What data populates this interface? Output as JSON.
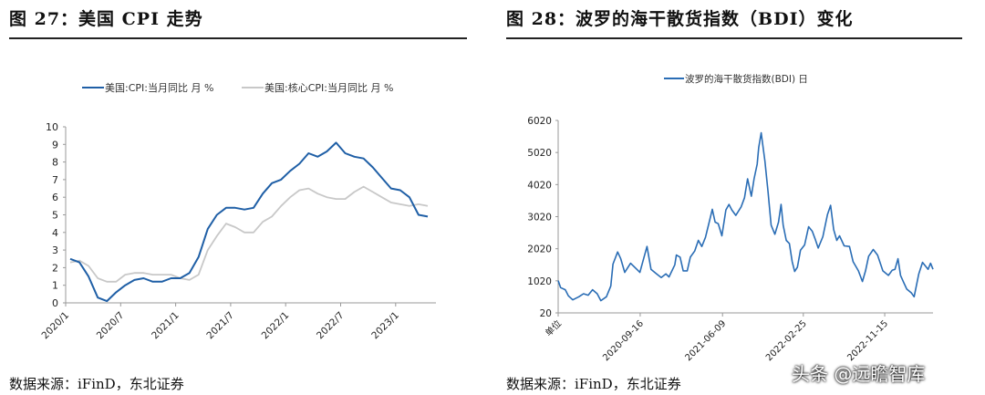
{
  "left": {
    "title": "图 27：美国 CPI 走势",
    "source": "数据来源：iFinD，东北证券"
  },
  "right": {
    "title": "图 28：波罗的海干散货指数（BDI）变化",
    "source": "数据来源：iFinD，东北证券"
  },
  "watermark": "头条 @远瞻智库",
  "chart_data": [
    {
      "type": "line",
      "title": "",
      "legend_position": "top",
      "grid": false,
      "ylim": [
        0,
        10
      ],
      "yticks": [
        0,
        1,
        2,
        3,
        4,
        5,
        6,
        7,
        8,
        9,
        10
      ],
      "xtick_labels": [
        "2020/1",
        "2020/7",
        "2021/1",
        "2021/7",
        "2022/1",
        "2022/7",
        "2023/1"
      ],
      "x": [
        "2020/1",
        "2020/2",
        "2020/3",
        "2020/4",
        "2020/5",
        "2020/6",
        "2020/7",
        "2020/8",
        "2020/9",
        "2020/10",
        "2020/11",
        "2020/12",
        "2021/1",
        "2021/2",
        "2021/3",
        "2021/4",
        "2021/5",
        "2021/6",
        "2021/7",
        "2021/8",
        "2021/9",
        "2021/10",
        "2021/11",
        "2021/12",
        "2022/1",
        "2022/2",
        "2022/3",
        "2022/4",
        "2022/5",
        "2022/6",
        "2022/7",
        "2022/8",
        "2022/9",
        "2022/10",
        "2022/11",
        "2022/12",
        "2023/1",
        "2023/2",
        "2023/3",
        "2023/4"
      ],
      "series": [
        {
          "name": "美国:CPI:当月同比 月 %",
          "color": "#1f5fa6",
          "values": [
            2.5,
            2.3,
            1.5,
            0.3,
            0.1,
            0.6,
            1.0,
            1.3,
            1.4,
            1.2,
            1.2,
            1.4,
            1.4,
            1.7,
            2.6,
            4.2,
            5.0,
            5.4,
            5.4,
            5.3,
            5.4,
            6.2,
            6.8,
            7.0,
            7.5,
            7.9,
            8.5,
            8.3,
            8.6,
            9.1,
            8.5,
            8.3,
            8.2,
            7.7,
            7.1,
            6.5,
            6.4,
            6.0,
            5.0,
            4.9
          ]
        },
        {
          "name": "美国:核心CPI:当月同比 月 %",
          "color": "#c8c8c8",
          "values": [
            2.3,
            2.4,
            2.1,
            1.4,
            1.2,
            1.2,
            1.6,
            1.7,
            1.7,
            1.6,
            1.6,
            1.6,
            1.4,
            1.3,
            1.6,
            3.0,
            3.8,
            4.5,
            4.3,
            4.0,
            4.0,
            4.6,
            4.9,
            5.5,
            6.0,
            6.4,
            6.5,
            6.2,
            6.0,
            5.9,
            5.9,
            6.3,
            6.6,
            6.3,
            6.0,
            5.7,
            5.6,
            5.5,
            5.6,
            5.5
          ]
        }
      ]
    },
    {
      "type": "line",
      "title": "",
      "legend_position": "top",
      "grid": false,
      "ylim": [
        20,
        6020
      ],
      "yticks": [
        20,
        1020,
        2020,
        3020,
        4020,
        5020,
        6020
      ],
      "xlim": [
        "2019-12-26",
        "2023-04-20"
      ],
      "xtick_labels": [
        "单位",
        "2020-09-16",
        "2021-06-09",
        "2022-02-25",
        "2022-11-15"
      ],
      "xtick_dates": [
        "2019-12-26",
        "2020-09-16",
        "2021-06-09",
        "2022-02-25",
        "2022-11-15"
      ],
      "series": [
        {
          "name": "波罗的海干散货指数(BDI) 日",
          "color": "#2a6db5",
          "points": [
            [
              "2019-12-26",
              1027
            ],
            [
              "2020-01-03",
              808
            ],
            [
              "2020-01-18",
              742
            ],
            [
              "2020-01-28",
              552
            ],
            [
              "2020-02-11",
              428
            ],
            [
              "2020-03-02",
              523
            ],
            [
              "2020-03-17",
              618
            ],
            [
              "2020-04-01",
              571
            ],
            [
              "2020-04-15",
              742
            ],
            [
              "2020-04-30",
              618
            ],
            [
              "2020-05-12",
              400
            ],
            [
              "2020-05-30",
              523
            ],
            [
              "2020-06-13",
              856
            ],
            [
              "2020-06-20",
              1540
            ],
            [
              "2020-07-05",
              1920
            ],
            [
              "2020-07-15",
              1710
            ],
            [
              "2020-07-28",
              1283
            ],
            [
              "2020-08-16",
              1568
            ],
            [
              "2020-09-05",
              1378
            ],
            [
              "2020-09-15",
              1283
            ],
            [
              "2020-09-27",
              1710
            ],
            [
              "2020-10-08",
              2090
            ],
            [
              "2020-10-21",
              1378
            ],
            [
              "2020-11-08",
              1236
            ],
            [
              "2020-11-23",
              1122
            ],
            [
              "2020-12-08",
              1236
            ],
            [
              "2020-12-18",
              1141
            ],
            [
              "2021-01-06",
              1520
            ],
            [
              "2021-01-11",
              1824
            ],
            [
              "2021-01-23",
              1758
            ],
            [
              "2021-02-02",
              1330
            ],
            [
              "2021-02-15",
              1330
            ],
            [
              "2021-02-25",
              1758
            ],
            [
              "2021-03-11",
              1948
            ],
            [
              "2021-03-23",
              2280
            ],
            [
              "2021-04-03",
              2090
            ],
            [
              "2021-04-15",
              2375
            ],
            [
              "2021-04-27",
              2850
            ],
            [
              "2021-05-07",
              3249
            ],
            [
              "2021-05-16",
              2850
            ],
            [
              "2021-05-26",
              2802
            ],
            [
              "2021-06-07",
              2422
            ],
            [
              "2021-06-20",
              3230
            ],
            [
              "2021-06-30",
              3400
            ],
            [
              "2021-07-09",
              3230
            ],
            [
              "2021-07-22",
              3059
            ],
            [
              "2021-08-08",
              3325
            ],
            [
              "2021-08-19",
              3610
            ],
            [
              "2021-08-29",
              4199
            ],
            [
              "2021-09-10",
              3658
            ],
            [
              "2021-09-19",
              4199
            ],
            [
              "2021-09-29",
              4655
            ],
            [
              "2021-10-04",
              5177
            ],
            [
              "2021-10-12",
              5633
            ],
            [
              "2021-10-24",
              4750
            ],
            [
              "2021-11-03",
              3800
            ],
            [
              "2021-11-13",
              2755
            ],
            [
              "2021-11-25",
              2470
            ],
            [
              "2021-12-07",
              2850
            ],
            [
              "2021-12-15",
              3400
            ],
            [
              "2021-12-22",
              2755
            ],
            [
              "2022-01-01",
              2280
            ],
            [
              "2022-01-11",
              2185
            ],
            [
              "2022-01-20",
              1615
            ],
            [
              "2022-01-28",
              1311
            ],
            [
              "2022-02-06",
              1444
            ],
            [
              "2022-02-16",
              1976
            ],
            [
              "2022-03-01",
              2138
            ],
            [
              "2022-03-14",
              2707
            ],
            [
              "2022-03-26",
              2565
            ],
            [
              "2022-04-04",
              2328
            ],
            [
              "2022-04-14",
              2043
            ],
            [
              "2022-04-29",
              2394
            ],
            [
              "2022-05-14",
              3087
            ],
            [
              "2022-05-24",
              3372
            ],
            [
              "2022-06-03",
              2612
            ],
            [
              "2022-06-13",
              2280
            ],
            [
              "2022-06-22",
              2422
            ],
            [
              "2022-07-07",
              2109
            ],
            [
              "2022-07-24",
              2090
            ],
            [
              "2022-08-05",
              1615
            ],
            [
              "2022-08-22",
              1330
            ],
            [
              "2022-09-04",
              998
            ],
            [
              "2022-09-14",
              1330
            ],
            [
              "2022-09-24",
              1786
            ],
            [
              "2022-10-09",
              1995
            ],
            [
              "2022-10-23",
              1824
            ],
            [
              "2022-11-09",
              1330
            ],
            [
              "2022-11-27",
              1188
            ],
            [
              "2022-12-09",
              1349
            ],
            [
              "2022-12-18",
              1378
            ],
            [
              "2022-12-28",
              1710
            ],
            [
              "2023-01-05",
              1188
            ],
            [
              "2023-01-15",
              970
            ],
            [
              "2023-01-25",
              761
            ],
            [
              "2023-02-09",
              647
            ],
            [
              "2023-02-18",
              523
            ],
            [
              "2023-03-05",
              1236
            ],
            [
              "2023-03-17",
              1596
            ],
            [
              "2023-03-27",
              1473
            ],
            [
              "2023-04-04",
              1378
            ],
            [
              "2023-04-12",
              1568
            ],
            [
              "2023-04-20",
              1378
            ]
          ]
        }
      ]
    }
  ]
}
